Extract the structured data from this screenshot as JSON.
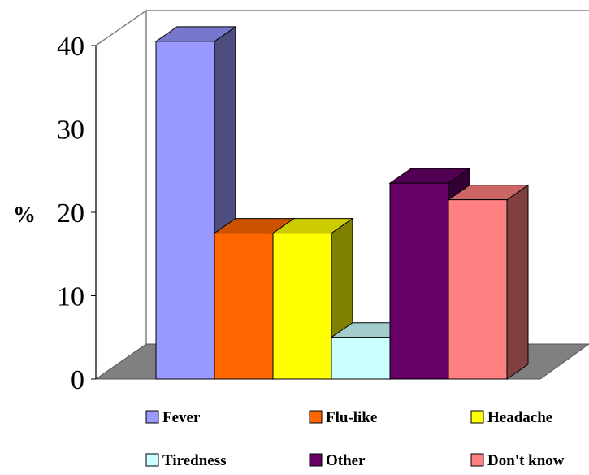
{
  "chart_data": {
    "type": "bar",
    "title": "",
    "xlabel": "",
    "ylabel": "%",
    "ylim": [
      0,
      40
    ],
    "yticks": [
      "0",
      "10",
      "20",
      "30",
      "40"
    ],
    "grid": false,
    "legend_position": "bottom",
    "style": "3d",
    "categories": [
      "Fever",
      "Flu-like",
      "Headache",
      "Tiredness",
      "Other",
      "Don't know"
    ],
    "values": [
      40.5,
      17.5,
      17.5,
      5,
      23.5,
      21.5
    ],
    "colors": [
      "#9999ff",
      "#ff6600",
      "#ffff00",
      "#ccffff",
      "#660066",
      "#ff8080"
    ],
    "side_colors": [
      "#4d4d80",
      "#803300",
      "#808000",
      "#668080",
      "#330033",
      "#804040"
    ],
    "top_colors": [
      "#7777cc",
      "#cc5200",
      "#cccc00",
      "#a3cccc",
      "#520052",
      "#cc6666"
    ],
    "floor_color": "#808080"
  }
}
